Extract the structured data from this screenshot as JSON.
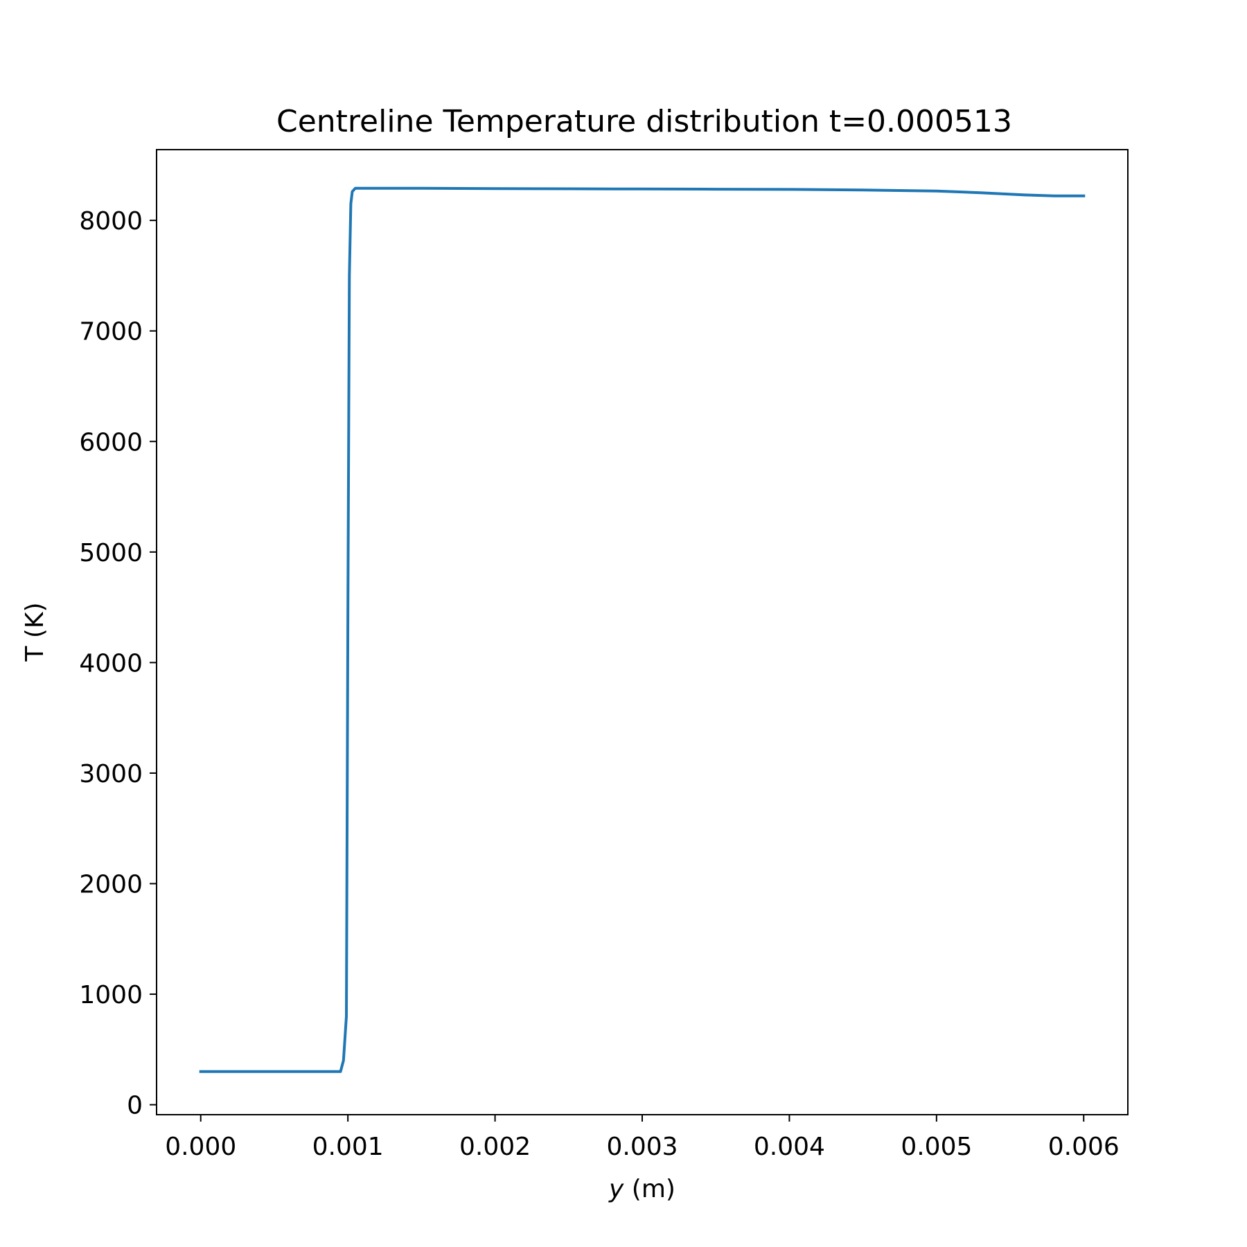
{
  "chart_data": {
    "type": "line",
    "title": "Centreline Temperature distribution t=0.000513",
    "xlabel_var": "y",
    "xlabel_unit": " (m)",
    "ylabel": "T (K)",
    "xlim": [
      -0.0003,
      0.0063
    ],
    "ylim": [
      -90,
      8640
    ],
    "x_ticks": [
      0.0,
      0.001,
      0.002,
      0.003,
      0.004,
      0.005,
      0.006
    ],
    "x_tick_labels": [
      "0.000",
      "0.001",
      "0.002",
      "0.003",
      "0.004",
      "0.005",
      "0.006"
    ],
    "y_ticks": [
      0,
      1000,
      2000,
      3000,
      4000,
      5000,
      6000,
      7000,
      8000
    ],
    "y_tick_labels": [
      "0",
      "1000",
      "2000",
      "3000",
      "4000",
      "5000",
      "6000",
      "7000",
      "8000"
    ],
    "grid": false,
    "series": [
      {
        "color": "#1f77b4",
        "x": [
          0.0,
          0.0005,
          0.00095,
          0.00097,
          0.00099,
          0.001,
          0.00101,
          0.00102,
          0.00103,
          0.00105,
          0.0015,
          0.002,
          0.0025,
          0.003,
          0.0035,
          0.004,
          0.0045,
          0.005,
          0.0053,
          0.0056,
          0.0058,
          0.006
        ],
        "y": [
          300,
          300,
          300,
          400,
          800,
          4500,
          7500,
          8150,
          8260,
          8290,
          8290,
          8288,
          8286,
          8284,
          8282,
          8280,
          8275,
          8265,
          8250,
          8230,
          8222,
          8222
        ]
      }
    ]
  }
}
